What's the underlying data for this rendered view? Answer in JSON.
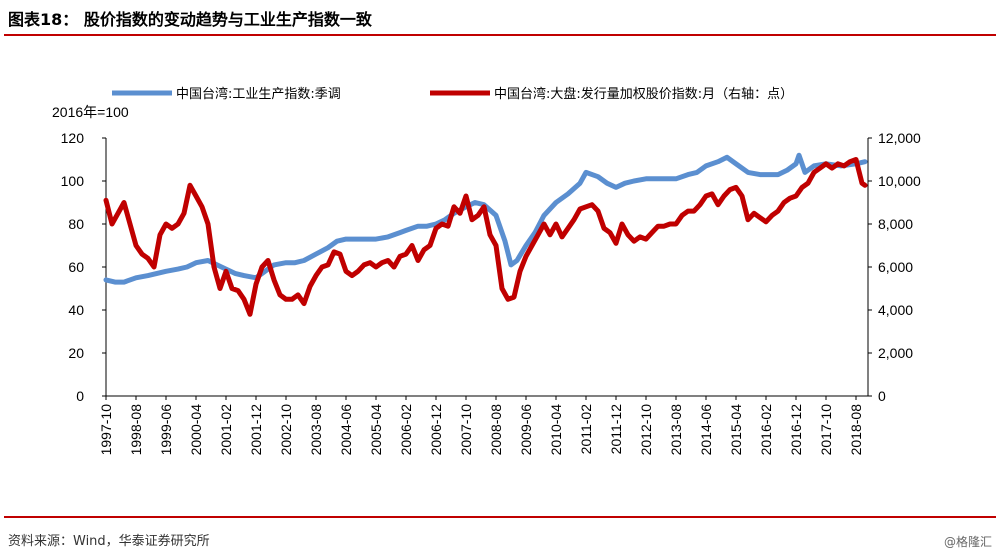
{
  "header": {
    "title": "图表18：  股价指数的变动趋势与工业生产指数一致"
  },
  "footer": {
    "source": "资料来源：Wind，华泰证券研究所",
    "watermark": "@格隆汇"
  },
  "colors": {
    "accent_rule": "#c00000",
    "series_ip": "#5b8fd0",
    "series_index": "#c00000"
  },
  "chart_data": {
    "type": "line",
    "unit_label": "2016年=100",
    "legend_position": "top",
    "grid": false,
    "x_labels": [
      "1997-10",
      "1998-08",
      "1999-06",
      "2000-04",
      "2001-02",
      "2001-12",
      "2002-10",
      "2003-08",
      "2004-06",
      "2005-04",
      "2006-02",
      "2006-12",
      "2007-10",
      "2008-08",
      "2009-06",
      "2010-04",
      "2011-02",
      "2011-12",
      "2012-10",
      "2013-08",
      "2014-06",
      "2015-04",
      "2016-02",
      "2016-12",
      "2017-10",
      "2018-08"
    ],
    "y_left": {
      "ticks": [
        "0",
        "20",
        "40",
        "60",
        "80",
        "100",
        "120"
      ],
      "ylim": [
        0,
        120
      ]
    },
    "y_right": {
      "ticks": [
        "0",
        "2,000",
        "4,000",
        "6,000",
        "8,000",
        "10,000",
        "12,000"
      ],
      "ylim": [
        0,
        12000
      ]
    },
    "series": [
      {
        "name": "中国台湾:工业生产指数:季调",
        "axis": "left",
        "color": "#5b8fd0",
        "points": [
          [
            "1997-10",
            54
          ],
          [
            "1998-01",
            53
          ],
          [
            "1998-04",
            53
          ],
          [
            "1998-08",
            55
          ],
          [
            "1998-12",
            56
          ],
          [
            "1999-03",
            57
          ],
          [
            "1999-06",
            58
          ],
          [
            "1999-10",
            59
          ],
          [
            "2000-01",
            60
          ],
          [
            "2000-04",
            62
          ],
          [
            "2000-08",
            63
          ],
          [
            "2000-11",
            61
          ],
          [
            "2001-02",
            59
          ],
          [
            "2001-05",
            57
          ],
          [
            "2001-08",
            56
          ],
          [
            "2001-12",
            55
          ],
          [
            "2002-03",
            58
          ],
          [
            "2002-06",
            61
          ],
          [
            "2002-10",
            62
          ],
          [
            "2003-01",
            62
          ],
          [
            "2003-04",
            63
          ],
          [
            "2003-08",
            66
          ],
          [
            "2003-12",
            69
          ],
          [
            "2004-03",
            72
          ],
          [
            "2004-06",
            73
          ],
          [
            "2004-10",
            73
          ],
          [
            "2005-01",
            73
          ],
          [
            "2005-04",
            73
          ],
          [
            "2005-08",
            74
          ],
          [
            "2005-12",
            76
          ],
          [
            "2006-02",
            77
          ],
          [
            "2006-06",
            79
          ],
          [
            "2006-09",
            79
          ],
          [
            "2006-12",
            80
          ],
          [
            "2007-03",
            82
          ],
          [
            "2007-06",
            85
          ],
          [
            "2007-10",
            88
          ],
          [
            "2008-01",
            90
          ],
          [
            "2008-04",
            89
          ],
          [
            "2008-08",
            84
          ],
          [
            "2008-11",
            72
          ],
          [
            "2009-01",
            61
          ],
          [
            "2009-03",
            63
          ],
          [
            "2009-06",
            70
          ],
          [
            "2009-09",
            76
          ],
          [
            "2009-12",
            84
          ],
          [
            "2010-04",
            90
          ],
          [
            "2010-08",
            94
          ],
          [
            "2010-12",
            99
          ],
          [
            "2011-02",
            104
          ],
          [
            "2011-06",
            102
          ],
          [
            "2011-09",
            99
          ],
          [
            "2011-12",
            97
          ],
          [
            "2012-03",
            99
          ],
          [
            "2012-06",
            100
          ],
          [
            "2012-10",
            101
          ],
          [
            "2013-03",
            101
          ],
          [
            "2013-08",
            101
          ],
          [
            "2013-12",
            103
          ],
          [
            "2014-03",
            104
          ],
          [
            "2014-06",
            107
          ],
          [
            "2014-10",
            109
          ],
          [
            "2015-01",
            111
          ],
          [
            "2015-04",
            108
          ],
          [
            "2015-08",
            104
          ],
          [
            "2015-12",
            103
          ],
          [
            "2016-02",
            103
          ],
          [
            "2016-06",
            103
          ],
          [
            "2016-09",
            105
          ],
          [
            "2016-12",
            108
          ],
          [
            "2017-01",
            112
          ],
          [
            "2017-03",
            104
          ],
          [
            "2017-06",
            107
          ],
          [
            "2017-10",
            108
          ],
          [
            "2018-03",
            107
          ],
          [
            "2018-08",
            108
          ],
          [
            "2018-11",
            109
          ]
        ]
      },
      {
        "name": "中国台湾:大盘:发行量加权股价指数:月（右轴：点）",
        "axis": "right",
        "color": "#c00000",
        "points": [
          [
            "1997-10",
            9100
          ],
          [
            "1997-12",
            8000
          ],
          [
            "1998-02",
            8500
          ],
          [
            "1998-04",
            9000
          ],
          [
            "1998-06",
            8000
          ],
          [
            "1998-08",
            7000
          ],
          [
            "1998-10",
            6600
          ],
          [
            "1998-12",
            6400
          ],
          [
            "1999-02",
            6000
          ],
          [
            "1999-04",
            7500
          ],
          [
            "1999-06",
            8000
          ],
          [
            "1999-08",
            7800
          ],
          [
            "1999-10",
            8000
          ],
          [
            "1999-12",
            8500
          ],
          [
            "2000-02",
            9800
          ],
          [
            "2000-04",
            9300
          ],
          [
            "2000-06",
            8800
          ],
          [
            "2000-08",
            8000
          ],
          [
            "2000-10",
            6000
          ],
          [
            "2000-12",
            5000
          ],
          [
            "2001-02",
            5800
          ],
          [
            "2001-04",
            5000
          ],
          [
            "2001-06",
            4900
          ],
          [
            "2001-08",
            4500
          ],
          [
            "2001-10",
            3800
          ],
          [
            "2001-12",
            5200
          ],
          [
            "2002-02",
            6000
          ],
          [
            "2002-04",
            6300
          ],
          [
            "2002-06",
            5400
          ],
          [
            "2002-08",
            4700
          ],
          [
            "2002-10",
            4500
          ],
          [
            "2002-12",
            4500
          ],
          [
            "2003-02",
            4700
          ],
          [
            "2003-04",
            4300
          ],
          [
            "2003-06",
            5100
          ],
          [
            "2003-08",
            5600
          ],
          [
            "2003-10",
            6000
          ],
          [
            "2003-12",
            6100
          ],
          [
            "2004-02",
            6700
          ],
          [
            "2004-04",
            6600
          ],
          [
            "2004-06",
            5800
          ],
          [
            "2004-08",
            5600
          ],
          [
            "2004-10",
            5800
          ],
          [
            "2004-12",
            6100
          ],
          [
            "2005-02",
            6200
          ],
          [
            "2005-04",
            6000
          ],
          [
            "2005-06",
            6200
          ],
          [
            "2005-08",
            6300
          ],
          [
            "2005-10",
            6000
          ],
          [
            "2005-12",
            6500
          ],
          [
            "2006-02",
            6600
          ],
          [
            "2006-04",
            7000
          ],
          [
            "2006-06",
            6300
          ],
          [
            "2006-08",
            6800
          ],
          [
            "2006-10",
            7000
          ],
          [
            "2006-12",
            7800
          ],
          [
            "2007-02",
            8000
          ],
          [
            "2007-04",
            7900
          ],
          [
            "2007-06",
            8800
          ],
          [
            "2007-08",
            8500
          ],
          [
            "2007-10",
            9300
          ],
          [
            "2007-12",
            8200
          ],
          [
            "2008-02",
            8400
          ],
          [
            "2008-04",
            8800
          ],
          [
            "2008-06",
            7500
          ],
          [
            "2008-08",
            7000
          ],
          [
            "2008-10",
            5000
          ],
          [
            "2008-12",
            4500
          ],
          [
            "2009-02",
            4600
          ],
          [
            "2009-04",
            5800
          ],
          [
            "2009-06",
            6500
          ],
          [
            "2009-08",
            7000
          ],
          [
            "2009-10",
            7500
          ],
          [
            "2009-12",
            8000
          ],
          [
            "2010-02",
            7500
          ],
          [
            "2010-04",
            8000
          ],
          [
            "2010-06",
            7400
          ],
          [
            "2010-08",
            7800
          ],
          [
            "2010-10",
            8200
          ],
          [
            "2010-12",
            8700
          ],
          [
            "2011-02",
            8800
          ],
          [
            "2011-04",
            8900
          ],
          [
            "2011-06",
            8600
          ],
          [
            "2011-08",
            7800
          ],
          [
            "2011-10",
            7600
          ],
          [
            "2011-12",
            7100
          ],
          [
            "2012-02",
            8000
          ],
          [
            "2012-04",
            7500
          ],
          [
            "2012-06",
            7200
          ],
          [
            "2012-08",
            7400
          ],
          [
            "2012-10",
            7300
          ],
          [
            "2012-12",
            7600
          ],
          [
            "2013-02",
            7900
          ],
          [
            "2013-04",
            7900
          ],
          [
            "2013-06",
            8000
          ],
          [
            "2013-08",
            8000
          ],
          [
            "2013-10",
            8400
          ],
          [
            "2013-12",
            8600
          ],
          [
            "2014-02",
            8600
          ],
          [
            "2014-04",
            8900
          ],
          [
            "2014-06",
            9300
          ],
          [
            "2014-08",
            9400
          ],
          [
            "2014-10",
            8900
          ],
          [
            "2014-12",
            9300
          ],
          [
            "2015-02",
            9600
          ],
          [
            "2015-04",
            9700
          ],
          [
            "2015-06",
            9300
          ],
          [
            "2015-08",
            8200
          ],
          [
            "2015-10",
            8500
          ],
          [
            "2015-12",
            8300
          ],
          [
            "2016-02",
            8100
          ],
          [
            "2016-04",
            8400
          ],
          [
            "2016-06",
            8600
          ],
          [
            "2016-08",
            9000
          ],
          [
            "2016-10",
            9200
          ],
          [
            "2016-12",
            9300
          ],
          [
            "2017-02",
            9700
          ],
          [
            "2017-04",
            9900
          ],
          [
            "2017-06",
            10400
          ],
          [
            "2017-08",
            10600
          ],
          [
            "2017-10",
            10800
          ],
          [
            "2017-12",
            10600
          ],
          [
            "2018-02",
            10800
          ],
          [
            "2018-04",
            10700
          ],
          [
            "2018-06",
            10900
          ],
          [
            "2018-08",
            11000
          ],
          [
            "2018-10",
            9900
          ],
          [
            "2018-11",
            9800
          ]
        ]
      }
    ]
  }
}
